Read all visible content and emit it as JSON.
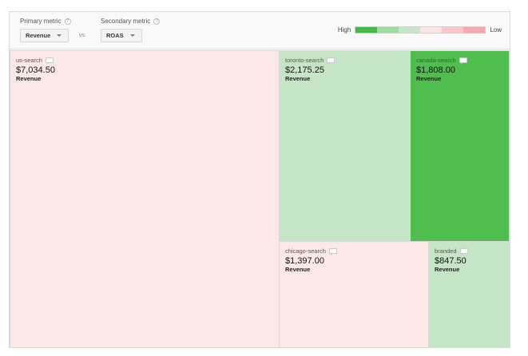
{
  "controls": {
    "primary_label": "Primary metric",
    "primary_value": "Revenue",
    "vs_label": "vs.",
    "secondary_label": "Secondary metric",
    "secondary_value": "ROAS",
    "help_glyph": "?"
  },
  "legend": {
    "high_label": "High",
    "low_label": "Low",
    "colors": [
      "#47b84a",
      "#a3d9a3",
      "#c9e6c9",
      "#fbe6e6",
      "#f6c9c9",
      "#f2a9a9"
    ]
  },
  "tiles": [
    {
      "name": "us-search",
      "value": "$7,034.50",
      "metric": "Revenue",
      "color": "#fde8e8"
    },
    {
      "name": "toronto-search",
      "value": "$2,175.25",
      "metric": "Revenue",
      "color": "#c6e5c6"
    },
    {
      "name": "canada-search",
      "value": "$1,808.00",
      "metric": "Revenue",
      "color": "#4fbe4f"
    },
    {
      "name": "chicago-search",
      "value": "$1,397.00",
      "metric": "Revenue",
      "color": "#fde8e8"
    },
    {
      "name": "branded",
      "value": "$847.50",
      "metric": "Revenue",
      "color": "#c6e5c6"
    }
  ]
}
